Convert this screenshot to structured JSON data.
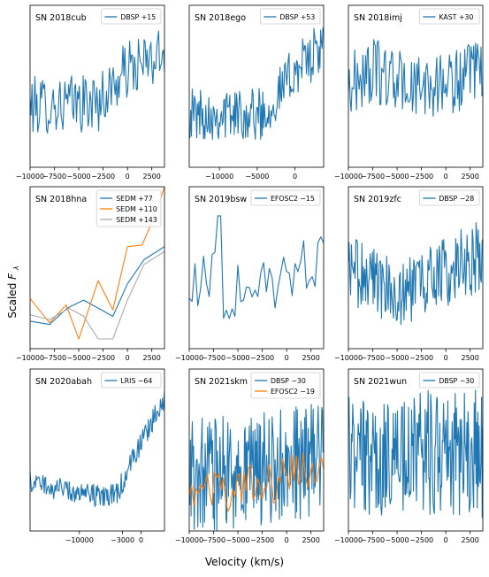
{
  "figure": {
    "ylabel_text": "Scaled ",
    "ylabel_symbol": "F",
    "ylabel_sub": "λ",
    "xlabel": "Velocity (km/s)"
  },
  "colors": {
    "blue": "#1f77b4",
    "orange": "#ff7f0e",
    "grey": "#aaaaaa"
  },
  "chart_data": [
    {
      "type": "line",
      "title": "SN 2018cub",
      "xlim": [
        -10000,
        3800
      ],
      "xticks": [
        -10000,
        -7500,
        -5000,
        -2500,
        0,
        2500
      ],
      "tick_labels": [
        "−10000",
        "−7500",
        "−5000",
        "−2500",
        "0",
        "2500"
      ],
      "legend": "top-right",
      "series": [
        {
          "name": "DBSP +15",
          "color": "blue",
          "kind": "noisy",
          "n": 140,
          "trend": [
            [
              -10000,
              0.38
            ],
            [
              -3000,
              0.4
            ],
            [
              0,
              0.6
            ],
            [
              3800,
              0.68
            ]
          ],
          "noise": 0.18
        }
      ]
    },
    {
      "type": "line",
      "title": "SN 2018ego",
      "xlim": [
        -14000,
        3800
      ],
      "xticks": [
        -10000,
        -5000,
        0
      ],
      "tick_labels": [
        "−10000",
        "−5000",
        "0"
      ],
      "legend": "top-right",
      "series": [
        {
          "name": "DBSP +53",
          "color": "blue",
          "kind": "noisy",
          "n": 180,
          "trend": [
            [
              -14000,
              0.33
            ],
            [
              -4000,
              0.33
            ],
            [
              0,
              0.6
            ],
            [
              3800,
              0.75
            ]
          ],
          "noise": 0.16
        }
      ]
    },
    {
      "type": "line",
      "title": "SN 2018imj",
      "xlim": [
        -10000,
        3800
      ],
      "xticks": [
        -10000,
        -7500,
        -5000,
        -2500,
        0,
        2500
      ],
      "tick_labels": [
        "−10000",
        "−7500",
        "−5000",
        "−2500",
        "0",
        "2500"
      ],
      "legend": "top-right",
      "series": [
        {
          "name": "KAST +30",
          "color": "blue",
          "kind": "noisy",
          "n": 150,
          "trend": [
            [
              -10000,
              0.5
            ],
            [
              -7500,
              0.6
            ],
            [
              -3000,
              0.48
            ],
            [
              3800,
              0.58
            ]
          ],
          "noise": 0.2
        }
      ]
    },
    {
      "type": "line",
      "title": "SN 2018hna",
      "xlim": [
        -10000,
        3800
      ],
      "xticks": [
        -10000,
        -7500,
        -5000,
        -2500,
        0,
        2500
      ],
      "tick_labels": [
        "−10000",
        "−7500",
        "−5000",
        "−2500",
        "0",
        "2500"
      ],
      "legend": "top-right",
      "series": [
        {
          "name": "SEDM +77",
          "color": "blue",
          "kind": "points",
          "x": [
            -10000,
            -8000,
            -6200,
            -4500,
            -1500,
            0,
            1700,
            3800
          ],
          "y": [
            0.17,
            0.15,
            0.25,
            0.3,
            0.2,
            0.4,
            0.55,
            0.63
          ]
        },
        {
          "name": "SEDM +110",
          "color": "orange",
          "kind": "points",
          "x": [
            -10000,
            -8000,
            -6300,
            -5000,
            -3000,
            -1500,
            0,
            1500,
            2800,
            3800
          ],
          "y": [
            0.31,
            0.16,
            0.27,
            0.06,
            0.42,
            0.24,
            0.63,
            0.64,
            0.82,
            1.0
          ]
        },
        {
          "name": "SEDM +143",
          "color": "grey",
          "kind": "points",
          "x": [
            -10000,
            -8000,
            -6000,
            -4500,
            -3000,
            -1500,
            0,
            1700,
            3800
          ],
          "y": [
            0.21,
            0.18,
            0.25,
            0.2,
            0.06,
            0.06,
            0.3,
            0.52,
            0.6
          ]
        }
      ]
    },
    {
      "type": "line",
      "title": "SN 2019bsw",
      "xlim": [
        -10000,
        3800
      ],
      "xticks": [
        -10000,
        -7500,
        -5000,
        -2500,
        0,
        2500
      ],
      "tick_labels": [
        "−10000",
        "−7500",
        "−5000",
        "−2500",
        "0",
        "2500"
      ],
      "legend": "top-right",
      "series": [
        {
          "name": "EFOSC2 −15",
          "color": "blue",
          "kind": "noisy",
          "n": 48,
          "trend": [
            [
              -10000,
              0.45
            ],
            [
              -5000,
              0.35
            ],
            [
              0,
              0.45
            ],
            [
              3800,
              0.6
            ]
          ],
          "noise": 0.22,
          "spikes": [
            [
              -6800,
              0.82
            ]
          ]
        }
      ]
    },
    {
      "type": "line",
      "title": "SN 2019zfc",
      "xlim": [
        -10000,
        3800
      ],
      "xticks": [
        -10000,
        -7500,
        -5000,
        -2500,
        0,
        2500
      ],
      "tick_labels": [
        "−10000",
        "−7500",
        "−5000",
        "−2500",
        "0",
        "2500"
      ],
      "legend": "top-right",
      "series": [
        {
          "name": "DBSP −28",
          "color": "blue",
          "kind": "noisy",
          "n": 180,
          "trend": [
            [
              -10000,
              0.5
            ],
            [
              -5000,
              0.35
            ],
            [
              -2500,
              0.4
            ],
            [
              3800,
              0.58
            ]
          ],
          "noise": 0.22
        }
      ]
    },
    {
      "type": "line",
      "title": "SN 2020abah",
      "xlim": [
        -18000,
        3800
      ],
      "xticks": [
        -10000,
        -3000,
        0
      ],
      "tick_labels": [
        "−10000",
        "−3000",
        "0"
      ],
      "legend": "top-right",
      "series": [
        {
          "name": "LRIS −64",
          "color": "blue",
          "kind": "noisy",
          "n": 200,
          "trend": [
            [
              -18000,
              0.3
            ],
            [
              -8000,
              0.22
            ],
            [
              -4000,
              0.22
            ],
            [
              0,
              0.55
            ],
            [
              3800,
              0.82
            ]
          ],
          "noise": 0.07
        }
      ]
    },
    {
      "type": "line",
      "title": "SN 2021skm",
      "xlim": [
        -10000,
        3800
      ],
      "xticks": [
        -10000,
        -7500,
        -5000,
        -2500,
        0,
        2500
      ],
      "tick_labels": [
        "−10000",
        "−7500",
        "−5000",
        "−2500",
        "0",
        "2500"
      ],
      "legend": "top-right",
      "series": [
        {
          "name": "DBSP −30",
          "color": "blue",
          "kind": "noisy",
          "n": 220,
          "trend": [
            [
              -10000,
              0.33
            ],
            [
              0,
              0.4
            ],
            [
              3800,
              0.45
            ]
          ],
          "noise": 0.36
        },
        {
          "name": "EFOSC2 −19",
          "color": "orange",
          "kind": "noisy",
          "n": 60,
          "trend": [
            [
              -10000,
              0.25
            ],
            [
              -5000,
              0.25
            ],
            [
              0,
              0.33
            ],
            [
              3800,
              0.4
            ]
          ],
          "noise": 0.14
        }
      ]
    },
    {
      "type": "line",
      "title": "SN 2021wun",
      "xlim": [
        -10000,
        3800
      ],
      "xticks": [
        -10000,
        -7500,
        -5000,
        -2500,
        0,
        2500
      ],
      "tick_labels": [
        "−10000",
        "−7500",
        "−5000",
        "−2500",
        "0",
        "2500"
      ],
      "legend": "top-right",
      "series": [
        {
          "name": "DBSP −30",
          "color": "blue",
          "kind": "noisy",
          "n": 220,
          "trend": [
            [
              -10000,
              0.45
            ],
            [
              3800,
              0.48
            ]
          ],
          "noise": 0.4
        }
      ]
    }
  ]
}
